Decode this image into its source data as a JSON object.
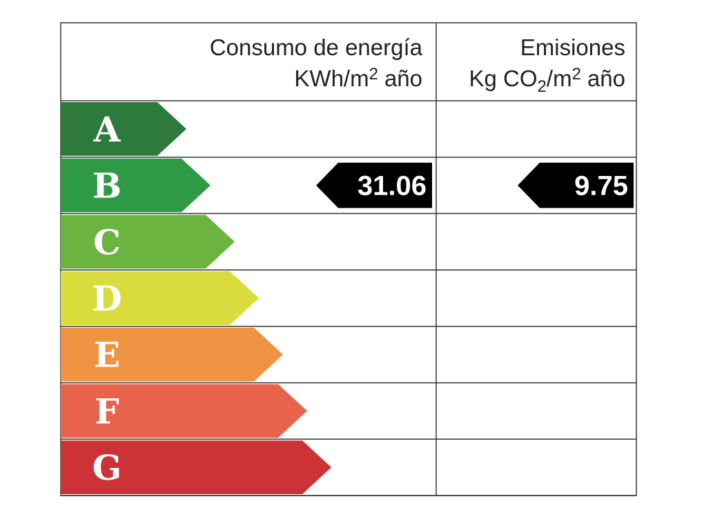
{
  "header": {
    "energy_title": "Consumo de energía",
    "energy_unit": [
      "KWh/m",
      "2",
      "año"
    ],
    "emissions_title": "Emisiones",
    "emissions_unit": [
      "Kg CO",
      "2",
      "/m",
      "2",
      "año"
    ]
  },
  "rows": [
    {
      "letter": "A",
      "color": "#2e7a3c"
    },
    {
      "letter": "B",
      "color": "#2f9a45"
    },
    {
      "letter": "C",
      "color": "#6bb43f"
    },
    {
      "letter": "D",
      "color": "#d8dc3c"
    },
    {
      "letter": "E",
      "color": "#ef9241"
    },
    {
      "letter": "F",
      "color": "#e8634b"
    },
    {
      "letter": "G",
      "color": "#cc3236"
    }
  ],
  "energy": {
    "rating": "B",
    "value": "31.06"
  },
  "emissions": {
    "rating": "B",
    "value": "9.75"
  }
}
